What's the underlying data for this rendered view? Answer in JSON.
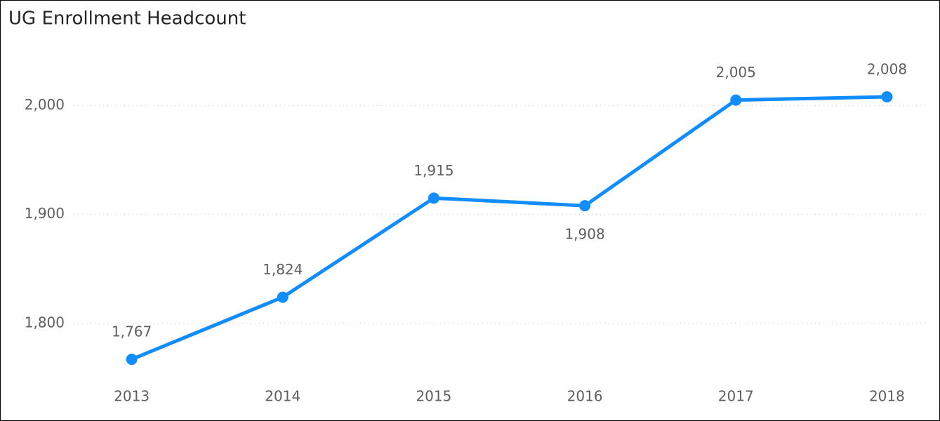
{
  "chart_data": {
    "type": "line",
    "title": "UG Enrollment Headcount",
    "categories": [
      "2013",
      "2014",
      "2015",
      "2016",
      "2017",
      "2018"
    ],
    "series": [
      {
        "name": "UG Enrollment Headcount",
        "color": "#118dff",
        "values": [
          1767,
          1824,
          1915,
          1908,
          2005,
          2008
        ],
        "value_labels": [
          "1,767",
          "1,824",
          "1,915",
          "1,908",
          "2,005",
          "2,008"
        ]
      }
    ],
    "ylim": [
      1749,
      2055
    ],
    "yticks": [
      {
        "value": 1800,
        "label": "1,800"
      },
      {
        "value": 1900,
        "label": "1,900"
      },
      {
        "value": 2000,
        "label": "2,000"
      }
    ],
    "grid": true
  }
}
